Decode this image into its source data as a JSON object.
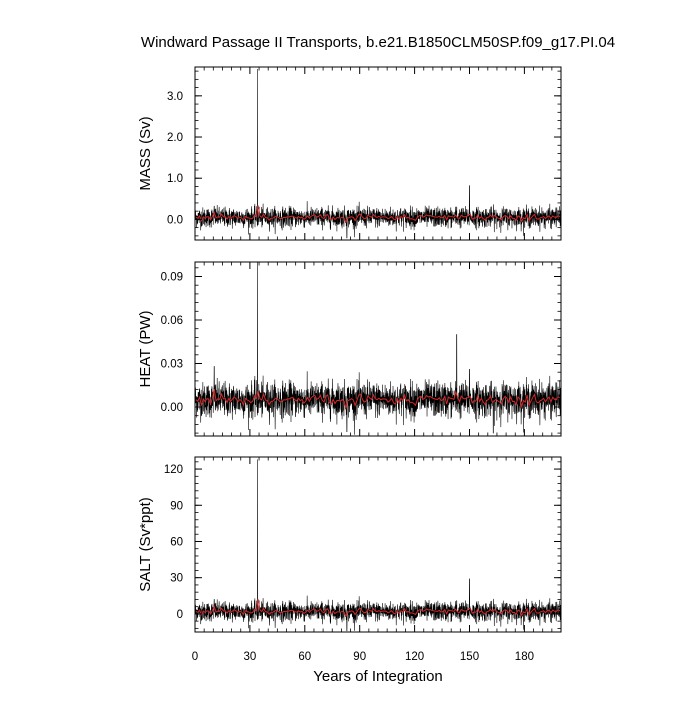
{
  "chart_data": {
    "type": "line",
    "title": "Windward Passage II Transports, b.e21.B1850CLM50SP.f09_g17.PI.04",
    "xlabel": "Years of Integration",
    "xlim": [
      0,
      200
    ],
    "x_ticks": [
      0,
      30,
      60,
      90,
      120,
      150,
      180
    ],
    "grid": false,
    "colors": {
      "raw": "#000000",
      "smoothed": "#d62728"
    },
    "panels": [
      {
        "ylabel": "MASS (Sv)",
        "ylim": [
          -0.5,
          3.7
        ],
        "y_ticks": [
          0.0,
          1.0,
          2.0,
          3.0
        ],
        "y_tick_labels": [
          "0.0",
          "1.0",
          "2.0",
          "3.0"
        ],
        "baseline": 0.05,
        "noise": 0.12,
        "spikes": [
          [
            34.2,
            3.65
          ],
          [
            150.0,
            0.82
          ],
          [
            35.0,
            0.3
          ],
          [
            10.5,
            0.32
          ],
          [
            143.0,
            0.3
          ],
          [
            83.0,
            -0.45
          ]
        ]
      },
      {
        "ylabel": "HEAT (PW)",
        "ylim": [
          -0.02,
          0.1
        ],
        "y_ticks": [
          0.0,
          0.03,
          0.06,
          0.09
        ],
        "y_tick_labels": [
          "0.00",
          "0.03",
          "0.06",
          "0.09"
        ],
        "baseline": 0.005,
        "noise": 0.006,
        "spikes": [
          [
            34.2,
            0.1
          ],
          [
            143.0,
            0.05
          ],
          [
            150.0,
            0.026
          ],
          [
            83.0,
            -0.017
          ],
          [
            163.0,
            -0.018
          ],
          [
            10.5,
            0.028
          ]
        ]
      },
      {
        "ylabel": "SALT (Sv*ppt)",
        "ylim": [
          -15,
          130
        ],
        "y_ticks": [
          0,
          30,
          60,
          90,
          120
        ],
        "y_tick_labels": [
          "0",
          "30",
          "60",
          "90",
          "120"
        ],
        "baseline": 2,
        "noise": 4,
        "spikes": [
          [
            34.2,
            128
          ],
          [
            150.0,
            29
          ],
          [
            35.0,
            11
          ],
          [
            10.5,
            12
          ],
          [
            143.0,
            11
          ],
          [
            83.0,
            -14
          ]
        ]
      }
    ]
  }
}
